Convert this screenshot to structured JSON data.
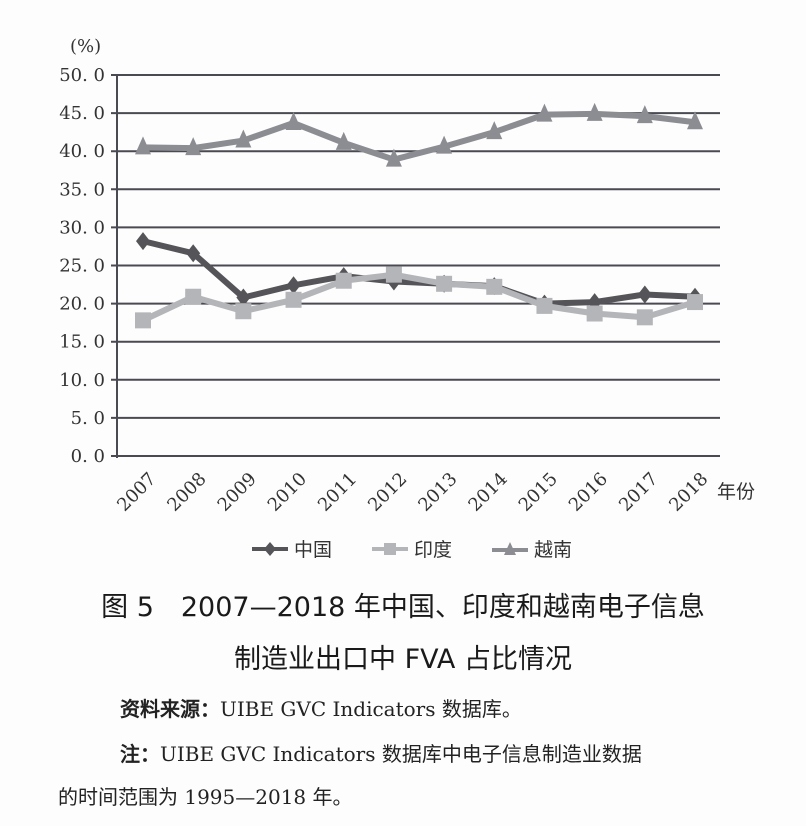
{
  "chart_data": {
    "type": "line",
    "title": "图 5　2007—2018 年中国、印度和越南电子信息制造业出口中 FVA 占比情况",
    "xlabel": "年份",
    "ylabel": "(%)",
    "ylim": [
      0,
      50
    ],
    "yticks": [
      "0.0",
      "5.0",
      "10.0",
      "15.0",
      "20.0",
      "25.0",
      "30.0",
      "35.0",
      "40.0",
      "45.0",
      "50.0"
    ],
    "grid": true,
    "legend_position": "bottom",
    "categories": [
      "2007",
      "2008",
      "2009",
      "2010",
      "2011",
      "2012",
      "2013",
      "2014",
      "2015",
      "2016",
      "2017",
      "2018"
    ],
    "series": [
      {
        "name": "中国",
        "marker": "diamond",
        "color": "#555559",
        "values": [
          28.2,
          26.6,
          20.8,
          22.4,
          23.6,
          22.9,
          22.6,
          22.3,
          20.0,
          20.2,
          21.2,
          20.9
        ]
      },
      {
        "name": "印度",
        "marker": "square",
        "color": "#b4b5b9",
        "values": [
          17.8,
          20.9,
          19.0,
          20.5,
          23.0,
          23.8,
          22.6,
          22.2,
          19.7,
          18.7,
          18.2,
          20.2
        ]
      },
      {
        "name": "越南",
        "marker": "triangle",
        "color": "#8c8d92",
        "values": [
          40.5,
          40.4,
          41.4,
          43.7,
          41.1,
          38.9,
          40.6,
          42.5,
          44.8,
          44.9,
          44.6,
          43.8
        ]
      }
    ]
  },
  "axis": {
    "y_unit": "(%)",
    "x_unit": "年份"
  },
  "legend": {
    "items": [
      "中国",
      "印度",
      "越南"
    ]
  },
  "caption": {
    "line1": "图 5　2007—2018 年中国、印度和越南电子信息",
    "line2": "制造业出口中 FVA 占比情况"
  },
  "source": {
    "label": "资料来源：",
    "text": "UIBE GVC Indicators 数据库。"
  },
  "note": {
    "label": "注：",
    "text1": "UIBE GVC Indicators 数据库中电子信息制造业数据",
    "text2": "的时间范围为 1995—2018 年。"
  }
}
